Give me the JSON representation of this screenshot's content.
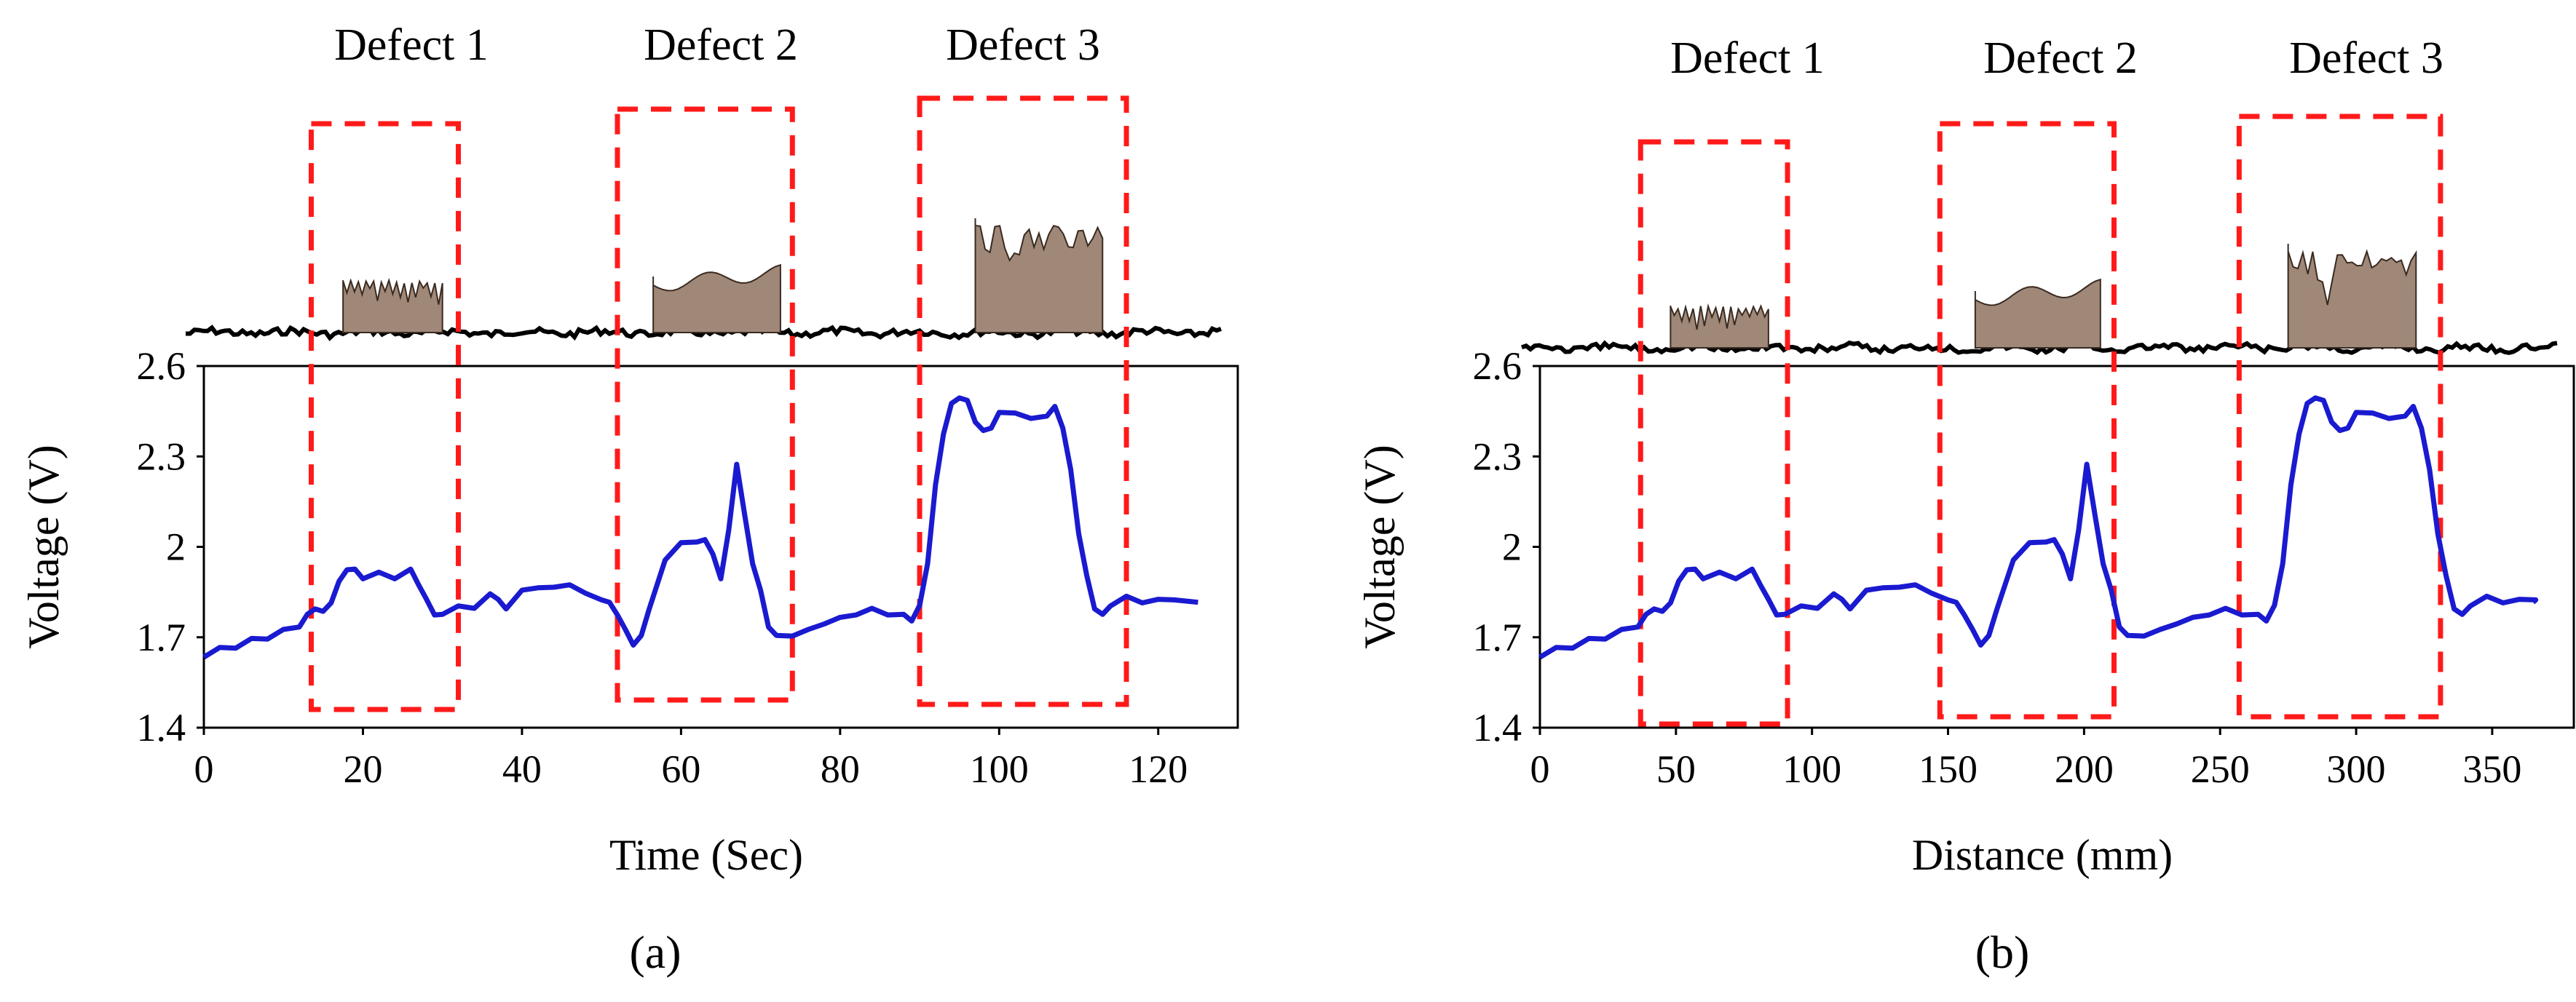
{
  "chart_data": [
    {
      "type": "line",
      "panel_label": "(a)",
      "xlabel": "Time (Sec)",
      "ylabel": "Voltage (V)",
      "xlim": [
        0,
        130
      ],
      "ylim": [
        1.4,
        2.6
      ],
      "xticks": [
        "0",
        "20",
        "40",
        "60",
        "80",
        "100",
        "120"
      ],
      "yticks": [
        "1.4",
        "1.7",
        "2",
        "2.3",
        "2.6"
      ],
      "colors": {
        "signal": "#1a1ad0",
        "defect_box": "#ff1a1a",
        "profile": "#a08878"
      },
      "defects": [
        {
          "label": "Defect 1",
          "x_start": 13.5,
          "x_end": 32
        },
        {
          "label": "Defect 2",
          "x_start": 52,
          "x_end": 74
        },
        {
          "label": "Defect 3",
          "x_start": 90,
          "x_end": 116
        }
      ],
      "defect_profiles": [
        {
          "x_start": 17.5,
          "x_end": 30,
          "shape": "spiky"
        },
        {
          "x_start": 56.5,
          "x_end": 72.5,
          "shape": "wavy"
        },
        {
          "x_start": 97,
          "x_end": 113,
          "shape": "deep"
        }
      ],
      "series": [
        {
          "name": "Voltage",
          "x": [
            0,
            2,
            4,
            6,
            8,
            10,
            12,
            13,
            14,
            15,
            16,
            17,
            18,
            19,
            20,
            22,
            24,
            26,
            27,
            28,
            29,
            30,
            32,
            34,
            36,
            37,
            38,
            40,
            42,
            44,
            46,
            48,
            50,
            51,
            52,
            53,
            54,
            55,
            56,
            58,
            60,
            62,
            63,
            64,
            65,
            66,
            67,
            68,
            69,
            70,
            71,
            72,
            74,
            76,
            78,
            80,
            82,
            84,
            86,
            88,
            89,
            90,
            91,
            92,
            93,
            94,
            95,
            96,
            97,
            98,
            99,
            100,
            102,
            104,
            106,
            107,
            108,
            109,
            110,
            111,
            112,
            113,
            114,
            116,
            118,
            120,
            122,
            125
          ],
          "y": [
            1.64,
            1.66,
            1.67,
            1.69,
            1.7,
            1.72,
            1.74,
            1.77,
            1.8,
            1.78,
            1.82,
            1.88,
            1.93,
            1.92,
            1.9,
            1.91,
            1.9,
            1.92,
            1.88,
            1.82,
            1.78,
            1.77,
            1.81,
            1.79,
            1.85,
            1.82,
            1.8,
            1.85,
            1.87,
            1.86,
            1.88,
            1.84,
            1.83,
            1.81,
            1.78,
            1.72,
            1.68,
            1.7,
            1.8,
            1.95,
            2.02,
            2.01,
            2.03,
            1.97,
            1.9,
            2.05,
            2.28,
            2.1,
            1.95,
            1.85,
            1.74,
            1.7,
            1.71,
            1.72,
            1.75,
            1.76,
            1.78,
            1.79,
            1.78,
            1.77,
            1.76,
            1.8,
            1.95,
            2.2,
            2.38,
            2.47,
            2.5,
            2.48,
            2.42,
            2.38,
            2.4,
            2.44,
            2.45,
            2.42,
            2.44,
            2.46,
            2.4,
            2.25,
            2.05,
            1.9,
            1.8,
            1.77,
            1.81,
            1.83,
            1.82,
            1.82,
            1.83,
            1.81
          ]
        }
      ]
    },
    {
      "type": "line",
      "panel_label": "(b)",
      "xlabel": "Distance (mm)",
      "ylabel": "Voltage (V)",
      "xlim": [
        0,
        380
      ],
      "ylim": [
        1.4,
        2.6
      ],
      "xticks": [
        "0",
        "50",
        "100",
        "150",
        "200",
        "250",
        "300",
        "350"
      ],
      "yticks": [
        "1.4",
        "1.7",
        "2",
        "2.3",
        "2.6"
      ],
      "colors": {
        "signal": "#1a1ad0",
        "defect_box": "#ff1a1a",
        "profile": "#a08878"
      },
      "defects": [
        {
          "label": "Defect 1",
          "x_start": 37,
          "x_end": 91
        },
        {
          "label": "Defect 2",
          "x_start": 147,
          "x_end": 211
        },
        {
          "label": "Defect 3",
          "x_start": 257,
          "x_end": 331
        }
      ],
      "defect_profiles": [
        {
          "x_start": 48,
          "x_end": 84,
          "shape": "spiky"
        },
        {
          "x_start": 160,
          "x_end": 206,
          "shape": "wavy"
        },
        {
          "x_start": 275,
          "x_end": 322,
          "shape": "deep"
        }
      ],
      "series": [
        {
          "name": "Voltage",
          "x": [
            0,
            6,
            12,
            18,
            24,
            30,
            36,
            39,
            42,
            45,
            48,
            51,
            54,
            57,
            60,
            66,
            72,
            78,
            81,
            84,
            87,
            90,
            96,
            102,
            108,
            111,
            114,
            120,
            126,
            132,
            138,
            144,
            150,
            153,
            156,
            159,
            162,
            165,
            168,
            174,
            180,
            186,
            189,
            192,
            195,
            198,
            201,
            204,
            207,
            210,
            213,
            216,
            222,
            228,
            234,
            240,
            246,
            252,
            258,
            264,
            267,
            270,
            273,
            276,
            279,
            282,
            285,
            288,
            291,
            294,
            297,
            300,
            306,
            312,
            318,
            321,
            324,
            327,
            330,
            333,
            336,
            339,
            342,
            348,
            354,
            360,
            366,
            365
          ],
          "y": [
            1.64,
            1.66,
            1.67,
            1.69,
            1.7,
            1.72,
            1.74,
            1.77,
            1.8,
            1.78,
            1.82,
            1.88,
            1.93,
            1.92,
            1.9,
            1.91,
            1.9,
            1.92,
            1.88,
            1.82,
            1.78,
            1.77,
            1.81,
            1.79,
            1.85,
            1.82,
            1.8,
            1.85,
            1.87,
            1.86,
            1.88,
            1.84,
            1.83,
            1.81,
            1.78,
            1.72,
            1.68,
            1.7,
            1.8,
            1.95,
            2.02,
            2.01,
            2.03,
            1.97,
            1.9,
            2.05,
            2.28,
            2.1,
            1.95,
            1.85,
            1.74,
            1.7,
            1.71,
            1.72,
            1.75,
            1.76,
            1.78,
            1.79,
            1.78,
            1.77,
            1.76,
            1.8,
            1.95,
            2.2,
            2.38,
            2.47,
            2.5,
            2.48,
            2.42,
            2.38,
            2.4,
            2.44,
            2.45,
            2.42,
            2.44,
            2.46,
            2.4,
            2.25,
            2.05,
            1.9,
            1.8,
            1.77,
            1.81,
            1.83,
            1.82,
            1.82,
            1.83,
            1.81
          ]
        }
      ]
    }
  ]
}
